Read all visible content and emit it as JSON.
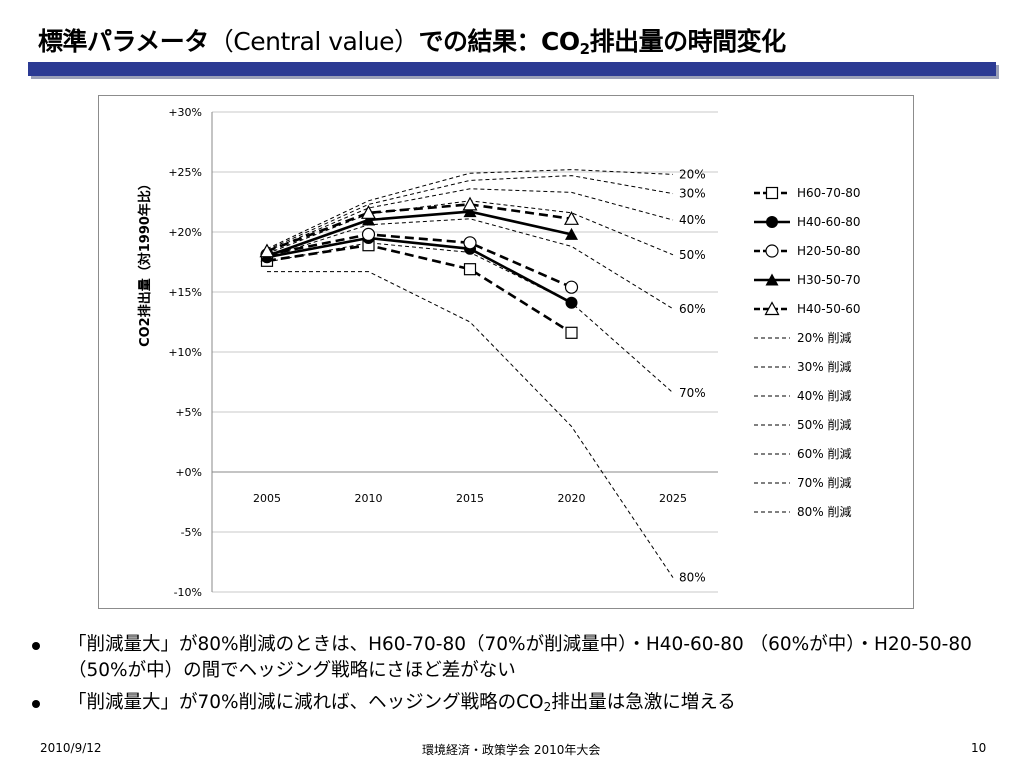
{
  "slide": {
    "title_main": "標準パラメータ",
    "title_paren": "（Central value）",
    "title_rest": "での結果：CO",
    "title_sub": "2",
    "title_end": "排出量の時間変化"
  },
  "bullets": [
    {
      "text": "「削減量大」が80%削減のときは、H60-70-80（70%が削減量中）・H40-60-80 （60%が中）・H20-50-80 （50%が中）の間でヘッジング戦略にさほど差がない"
    },
    {
      "text_before": "「削減量大」が70%削減に減れば、ヘッジング戦略のCO",
      "text_sub": "2",
      "text_after": "排出量は急激に増える"
    }
  ],
  "footer": {
    "date": "2010/9/12",
    "event": "環境経済・政策学会 2010年大会",
    "page": "10"
  },
  "colors": {
    "title_bar": "#2b3a93",
    "title_bar_shadow": "#9aa0b8",
    "gridline": "#c8c8c8",
    "series": "#000000"
  },
  "chart_data": {
    "type": "line",
    "title": "",
    "xlabel": "",
    "ylabel": "CO2排出量（対1990年比）",
    "x": [
      2005,
      2010,
      2015,
      2020,
      2025
    ],
    "x_tick_labels": [
      "2005",
      "2010",
      "2015",
      "2020",
      "2025"
    ],
    "ylim": [
      -10,
      30
    ],
    "y_ticks": [
      30,
      25,
      20,
      15,
      10,
      5,
      0,
      -5,
      -10
    ],
    "y_tick_labels": [
      "+30%",
      "+25%",
      "+20%",
      "+15%",
      "+10%",
      "+5%",
      "+0%",
      "-5%",
      "-10%"
    ],
    "grid": "horizontal",
    "legend": "right",
    "series": [
      {
        "name": "H60-70-80",
        "style": "dashed-bold",
        "marker": "square-open",
        "values": [
          17.6,
          18.9,
          16.9,
          11.6,
          null
        ]
      },
      {
        "name": "H40-60-80",
        "style": "solid-bold",
        "marker": "circle-filled",
        "values": [
          17.9,
          19.5,
          18.6,
          14.1,
          null
        ]
      },
      {
        "name": "H20-50-80",
        "style": "dashed-bold",
        "marker": "circle-open",
        "values": [
          18.1,
          19.8,
          19.1,
          15.4,
          null
        ]
      },
      {
        "name": "H30-50-70",
        "style": "solid-bold",
        "marker": "triangle-filled",
        "values": [
          18.0,
          21.0,
          21.7,
          19.8,
          null
        ]
      },
      {
        "name": "H40-50-60",
        "style": "dashed-bold",
        "marker": "triangle-open",
        "values": [
          18.4,
          21.6,
          22.3,
          21.1,
          null
        ]
      },
      {
        "name": "20% 削減",
        "end_label": "20%",
        "style": "dashed-thin",
        "marker": "none",
        "values": [
          18.6,
          22.6,
          24.9,
          25.2,
          24.8
        ]
      },
      {
        "name": "30% 削減",
        "end_label": "30%",
        "style": "dashed-thin",
        "marker": "none",
        "values": [
          18.5,
          22.3,
          24.3,
          24.7,
          23.2
        ]
      },
      {
        "name": "40% 削減",
        "end_label": "40%",
        "style": "dashed-thin",
        "marker": "none",
        "values": [
          18.4,
          22.0,
          23.6,
          23.3,
          21.0
        ]
      },
      {
        "name": "50% 削減",
        "end_label": "50%",
        "style": "dashed-thin",
        "marker": "none",
        "values": [
          18.2,
          21.5,
          22.6,
          21.6,
          18.1
        ]
      },
      {
        "name": "60% 削減",
        "end_label": "60%",
        "style": "dashed-thin",
        "marker": "none",
        "values": [
          17.9,
          20.6,
          21.1,
          18.8,
          13.6
        ]
      },
      {
        "name": "70% 削減",
        "end_label": "70%",
        "style": "dashed-thin",
        "marker": "none",
        "values": [
          17.5,
          19.1,
          18.3,
          14.1,
          6.6
        ]
      },
      {
        "name": "80% 削減",
        "end_label": "80%",
        "style": "dashed-thin",
        "marker": "none",
        "values": [
          16.7,
          16.7,
          12.5,
          3.8,
          -8.8
        ]
      }
    ]
  }
}
